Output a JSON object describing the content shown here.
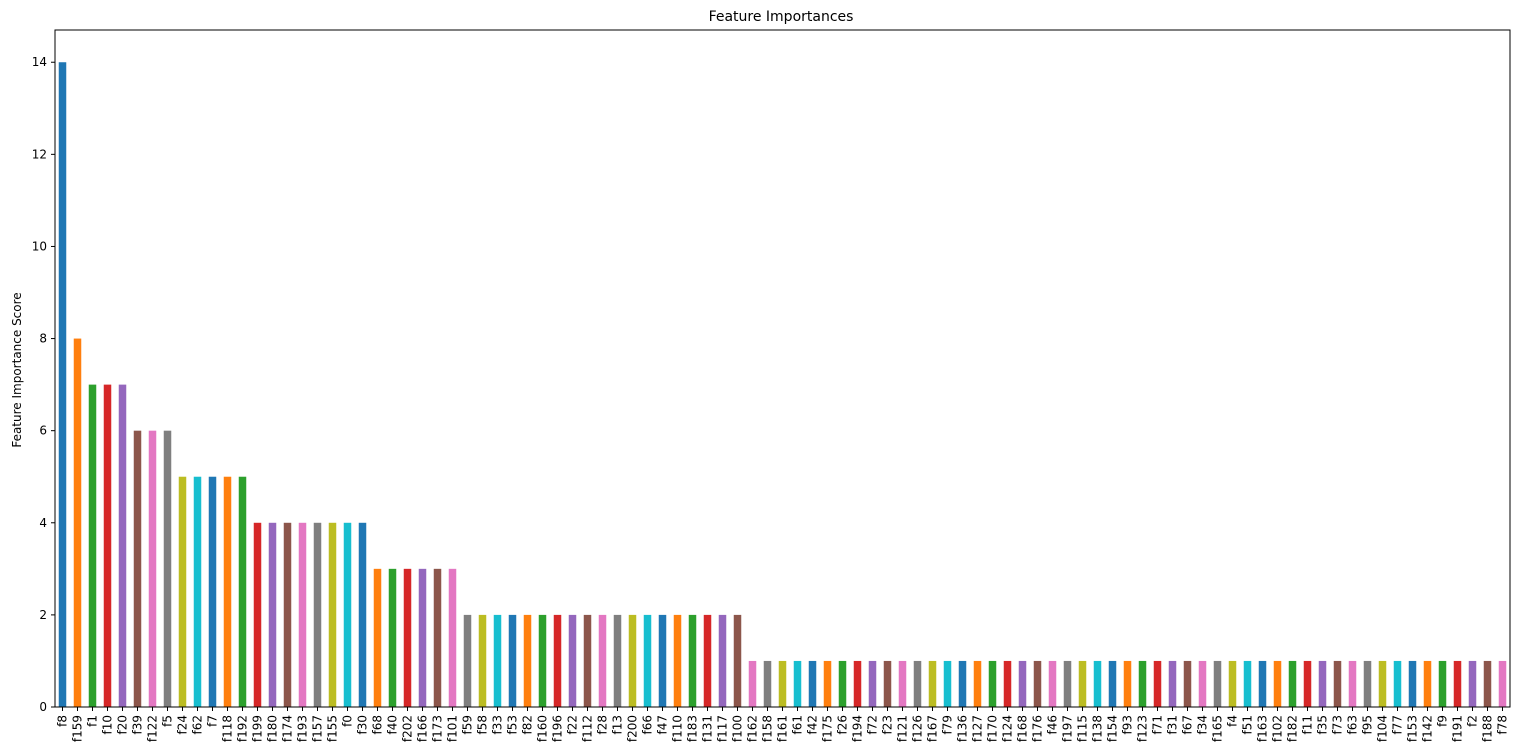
{
  "chart_data": {
    "type": "bar",
    "title": "Feature Importances",
    "xlabel": "",
    "ylabel": "Feature Importance Score",
    "ylim": [
      0,
      14.7
    ],
    "yticks": [
      "0",
      "2",
      "4",
      "6",
      "8",
      "10",
      "12",
      "14"
    ],
    "grid": false,
    "legend": "none",
    "categories": [
      "f8",
      "f159",
      "f1",
      "f10",
      "f20",
      "f39",
      "f122",
      "f5",
      "f24",
      "f62",
      "f7",
      "f118",
      "f192",
      "f199",
      "f180",
      "f174",
      "f193",
      "f157",
      "f155",
      "f0",
      "f30",
      "f68",
      "f40",
      "f202",
      "f166",
      "f173",
      "f101",
      "f59",
      "f58",
      "f33",
      "f53",
      "f82",
      "f160",
      "f196",
      "f22",
      "f112",
      "f28",
      "f13",
      "f200",
      "f66",
      "f47",
      "f110",
      "f183",
      "f131",
      "f117",
      "f100",
      "f162",
      "f158",
      "f161",
      "f61",
      "f42",
      "f175",
      "f26",
      "f194",
      "f72",
      "f23",
      "f121",
      "f126",
      "f167",
      "f79",
      "f136",
      "f127",
      "f170",
      "f124",
      "f168",
      "f176",
      "f46",
      "f197",
      "f115",
      "f138",
      "f154",
      "f93",
      "f123",
      "f71",
      "f31",
      "f67",
      "f34",
      "f165",
      "f4",
      "f51",
      "f163",
      "f102",
      "f182",
      "f11",
      "f35",
      "f73",
      "f63",
      "f95",
      "f104",
      "f77",
      "f153",
      "f142",
      "f9",
      "f191",
      "f2",
      "f188",
      "f78"
    ],
    "values": [
      14,
      8,
      7,
      7,
      7,
      6,
      6,
      6,
      5,
      5,
      5,
      5,
      5,
      4,
      4,
      4,
      4,
      4,
      4,
      4,
      4,
      3,
      3,
      3,
      3,
      3,
      3,
      2,
      2,
      2,
      2,
      2,
      2,
      2,
      2,
      2,
      2,
      2,
      2,
      2,
      2,
      2,
      2,
      2,
      2,
      2,
      1,
      1,
      1,
      1,
      1,
      1,
      1,
      1,
      1,
      1,
      1,
      1,
      1,
      1,
      1,
      1,
      1,
      1,
      1,
      1,
      1,
      1,
      1,
      1,
      1,
      1,
      1,
      1,
      1,
      1,
      1,
      1,
      1,
      1,
      1,
      1,
      1,
      1,
      1,
      1,
      1,
      1,
      1,
      1,
      1,
      1,
      1,
      1,
      1,
      1,
      1
    ],
    "palette": [
      "#1f77b4",
      "#ff7f0e",
      "#2ca02c",
      "#d62728",
      "#9467bd",
      "#8c564b",
      "#e377c2",
      "#7f7f7f",
      "#bcbd22",
      "#17becf"
    ]
  }
}
